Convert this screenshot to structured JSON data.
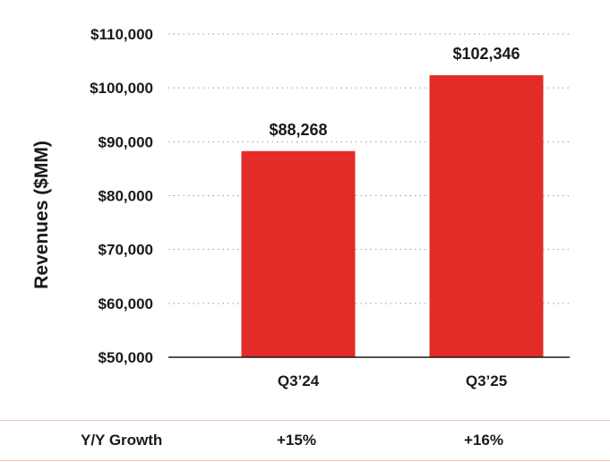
{
  "chart_data": {
    "type": "bar",
    "categories": [
      "Q3’24",
      "Q3’25"
    ],
    "values": [
      88268,
      102346
    ],
    "value_labels": [
      "$88,268",
      "$102,346"
    ],
    "ylabel": "Revenues ($MM)",
    "xlabel": "",
    "ylim": [
      50000,
      110000
    ],
    "yticks": [
      50000,
      60000,
      70000,
      80000,
      90000,
      100000,
      110000
    ],
    "ytick_labels": [
      "$50,000",
      "$60,000",
      "$70,000",
      "$80,000",
      "$90,000",
      "$100,000",
      "$110,000"
    ],
    "grid": "dotted horizontal",
    "bar_color": "#e32b27"
  },
  "growth": {
    "label": "Y/Y Growth",
    "values": [
      "+15%",
      "+16%"
    ]
  }
}
